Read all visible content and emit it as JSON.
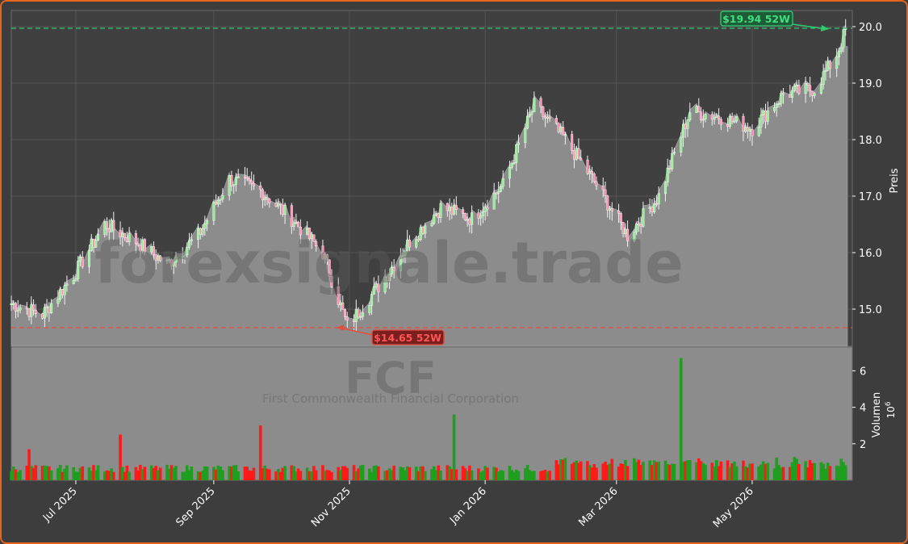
{
  "watermark": {
    "site": "forexsignale.trade",
    "ticker": "FCF",
    "company": "First Commonwealth Financial Corporation"
  },
  "annotations": {
    "high_label": "$19.94 52W",
    "low_label": "$14.65 52W"
  },
  "colors": {
    "background": "#3d3d3d",
    "frame": "#e8641c",
    "area": "#8c8c8c",
    "up": "#1f9e1f",
    "down": "#ff1a1a",
    "high_line": "#2ecc71",
    "low_line": "#e74c3c"
  },
  "chart_data": [
    {
      "type": "line",
      "name": "price",
      "ylabel": "Preis",
      "ylim": [
        14.65,
        20.3
      ],
      "yticks": [
        15.0,
        16.0,
        17.0,
        18.0,
        19.0,
        20.0
      ],
      "grid": true,
      "reference_lines": [
        {
          "label": "$19.94 52W",
          "value": 19.94
        },
        {
          "label": "$14.65 52W",
          "value": 14.65
        }
      ],
      "x": [
        "2025-06-02",
        "2025-06-16",
        "2025-06-30",
        "2025-07-14",
        "2025-07-28",
        "2025-08-11",
        "2025-08-25",
        "2025-09-08",
        "2025-09-22",
        "2025-10-06",
        "2025-10-20",
        "2025-10-31",
        "2025-11-14",
        "2025-11-28",
        "2025-12-12",
        "2025-12-26",
        "2026-01-09",
        "2026-01-23",
        "2026-02-06",
        "2026-02-20",
        "2026-03-06",
        "2026-03-20",
        "2026-04-03",
        "2026-04-17",
        "2026-05-01",
        "2026-05-15",
        "2026-05-29",
        "2026-06-08",
        "2026-06-12"
      ],
      "values": [
        15.1,
        14.9,
        15.6,
        16.5,
        16.2,
        15.8,
        16.3,
        17.3,
        17.1,
        16.6,
        16.0,
        14.7,
        15.4,
        16.2,
        16.8,
        16.6,
        17.2,
        18.6,
        18.0,
        17.2,
        16.3,
        17.0,
        18.5,
        18.4,
        18.2,
        18.8,
        18.9,
        19.5,
        19.94
      ]
    },
    {
      "type": "bar",
      "name": "volume",
      "ylabel": "Volumen",
      "unit": "10^6",
      "yticks": [
        2,
        4,
        6
      ],
      "ylim": [
        0,
        7.0
      ],
      "spikes": [
        {
          "x": "2025-06-11",
          "value": 1.7
        },
        {
          "x": "2025-07-22",
          "value": 2.5
        },
        {
          "x": "2025-09-22",
          "value": 3.0
        },
        {
          "x": "2025-12-19",
          "value": 3.6
        },
        {
          "x": "2026-03-31",
          "value": 6.7
        }
      ]
    }
  ],
  "x_axis": {
    "ticks": [
      {
        "x": "2025-07-01",
        "label": "Jul 2025"
      },
      {
        "x": "2025-09-01",
        "label": "Sep 2025"
      },
      {
        "x": "2025-11-01",
        "label": "Nov 2025"
      },
      {
        "x": "2026-01-01",
        "label": "Jan 2026"
      },
      {
        "x": "2026-03-01",
        "label": "Mar 2026"
      },
      {
        "x": "2026-05-01",
        "label": "May 2026"
      }
    ]
  }
}
